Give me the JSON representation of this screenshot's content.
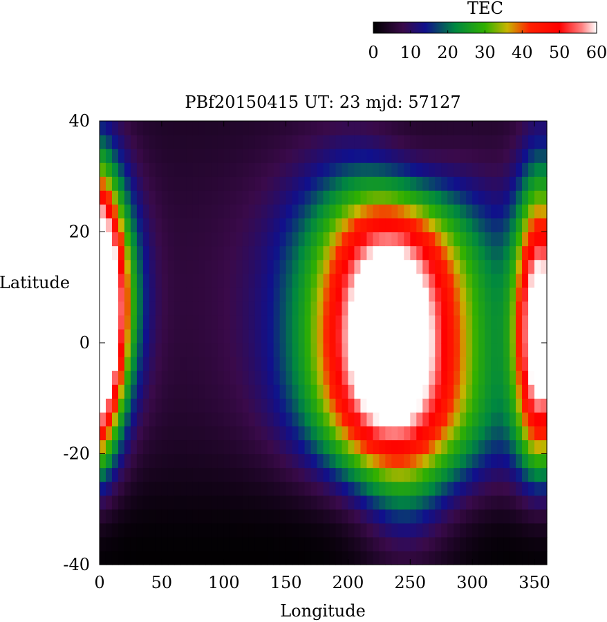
{
  "chart_data": {
    "type": "heatmap",
    "title": "PBf20150415  UT: 23  mjd: 57127",
    "xlabel": "Longitude",
    "ylabel": "Latitude",
    "xlim": [
      0,
      360
    ],
    "ylim": [
      -40,
      40
    ],
    "x_ticks": [
      "0",
      "50",
      "100",
      "150",
      "200",
      "250",
      "300",
      "350"
    ],
    "y_ticks": [
      "40",
      "20",
      "0",
      "-20",
      "-40"
    ],
    "x_tick_values": [
      0,
      50,
      100,
      150,
      200,
      250,
      300,
      350
    ],
    "y_tick_values": [
      40,
      20,
      0,
      -20,
      -40
    ],
    "colorbar": {
      "label": "TEC",
      "range": [
        0,
        60
      ],
      "ticks": [
        "0",
        "10",
        "20",
        "30",
        "40",
        "50",
        "60"
      ],
      "tick_values": [
        0,
        10,
        20,
        30,
        40,
        50,
        60
      ],
      "colors": [
        {
          "v": 0,
          "c": "#000000"
        },
        {
          "v": 8,
          "c": "#3a0a4a"
        },
        {
          "v": 14,
          "c": "#10108c"
        },
        {
          "v": 22,
          "c": "#008840"
        },
        {
          "v": 30,
          "c": "#30b000"
        },
        {
          "v": 36,
          "c": "#c8b400"
        },
        {
          "v": 42,
          "c": "#ff2000"
        },
        {
          "v": 50,
          "c": "#ff0000"
        },
        {
          "v": 56,
          "c": "#ff8080"
        },
        {
          "v": 60,
          "c": "#ffffff"
        }
      ]
    },
    "grid": {
      "lon_step": 5,
      "lat_step": 2.5,
      "lon_start": 0,
      "lat_start": -40
    }
  }
}
